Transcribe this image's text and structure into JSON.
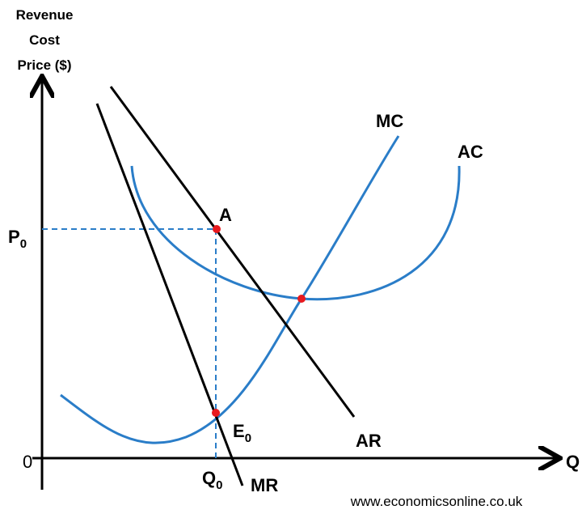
{
  "axis": {
    "y_label": [
      "Revenue",
      "Cost",
      "Price ($)"
    ],
    "x_label": "Q",
    "origin": "0"
  },
  "price_label": {
    "base": "P",
    "sub": "0"
  },
  "quantity_label": {
    "base": "Q",
    "sub": "0"
  },
  "curves": {
    "mc": "MC",
    "ac": "AC",
    "ar": "AR",
    "mr": "MR"
  },
  "points": {
    "a": "A",
    "e": {
      "base": "E",
      "sub": "0"
    }
  },
  "source": "www.economicsonline.co.uk"
}
